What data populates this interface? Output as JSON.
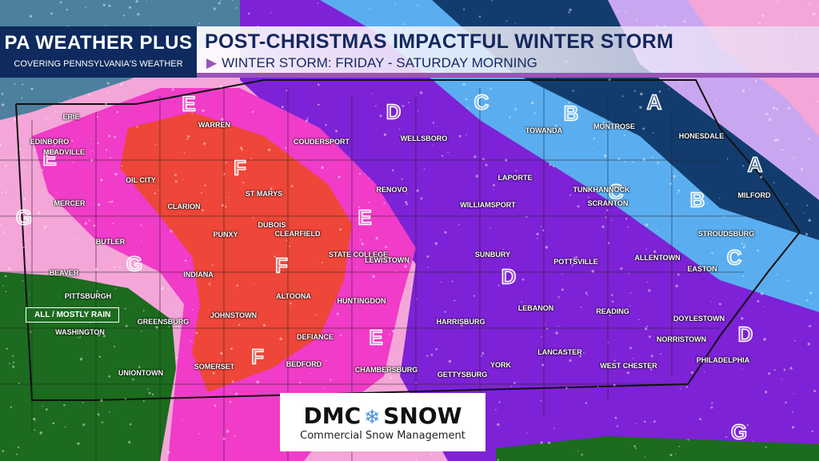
{
  "brand": {
    "title": "PA WEATHER PLUS",
    "subtitle": "COVERING PENNSYLVANIA'S WEATHER"
  },
  "header": {
    "title": "POST-CHRISTMAS IMPACTFUL WINTER STORM",
    "subtitle": "WINTER STORM: FRIDAY -  SATURDAY MORNING"
  },
  "rain_label": "ALL / MOSTLY RAIN",
  "logo": {
    "name": "DMC SNOW",
    "tagline": "Commercial Snow Management"
  },
  "colors": {
    "A": "#c9a7f0",
    "B": "#123c6e",
    "C": "#5aaef0",
    "D": "#7d22d6",
    "E": "#f03cc8",
    "F": "#ee4638",
    "G": "#f4a6d8",
    "rain": "#1c6b1e"
  },
  "zones": [
    "E",
    "E",
    "E",
    "E",
    "F",
    "F",
    "F",
    "G",
    "G",
    "G",
    "D",
    "D",
    "D",
    "C",
    "C",
    "C",
    "B",
    "B",
    "A",
    "A"
  ],
  "cities": [
    "ERIE",
    "EDINBORO",
    "MEADVILLE",
    "WARREN",
    "COUDERSPORT",
    "WELLSBORO",
    "TOWANDA",
    "MONTROSE",
    "HONESDALE",
    "OIL CITY",
    "CLARION",
    "ST MARYS",
    "RENOVO",
    "LAPORTE",
    "TUNKHANNOCK",
    "SCRANTON",
    "MILFORD",
    "MERCER",
    "DUBOIS",
    "WILLIAMSPORT",
    "STROUDSBURG",
    "BUTLER",
    "PUNXY",
    "CLEARFIELD",
    "STATE COLLEGE",
    "SUNBURY",
    "BEAVER",
    "INDIANA",
    "LEWISTOWN",
    "POTTSVILLE",
    "ALLENTOWN",
    "EASTON",
    "PITTSBURGH",
    "ALTOONA",
    "HUNTINGDON",
    "LEBANON",
    "READING",
    "DOYLESTOWN",
    "WASHINGTON",
    "GREENSBURG",
    "JOHNSTOWN",
    "HARRISBURG",
    "NORRISTOWN",
    "DEFIANCE",
    "LANCASTER",
    "UNIONTOWN",
    "SOMERSET",
    "BEDFORD",
    "CHAMBERSBURG",
    "GETTYSBURG",
    "YORK",
    "WEST CHESTER",
    "PHILADELPHIA"
  ]
}
